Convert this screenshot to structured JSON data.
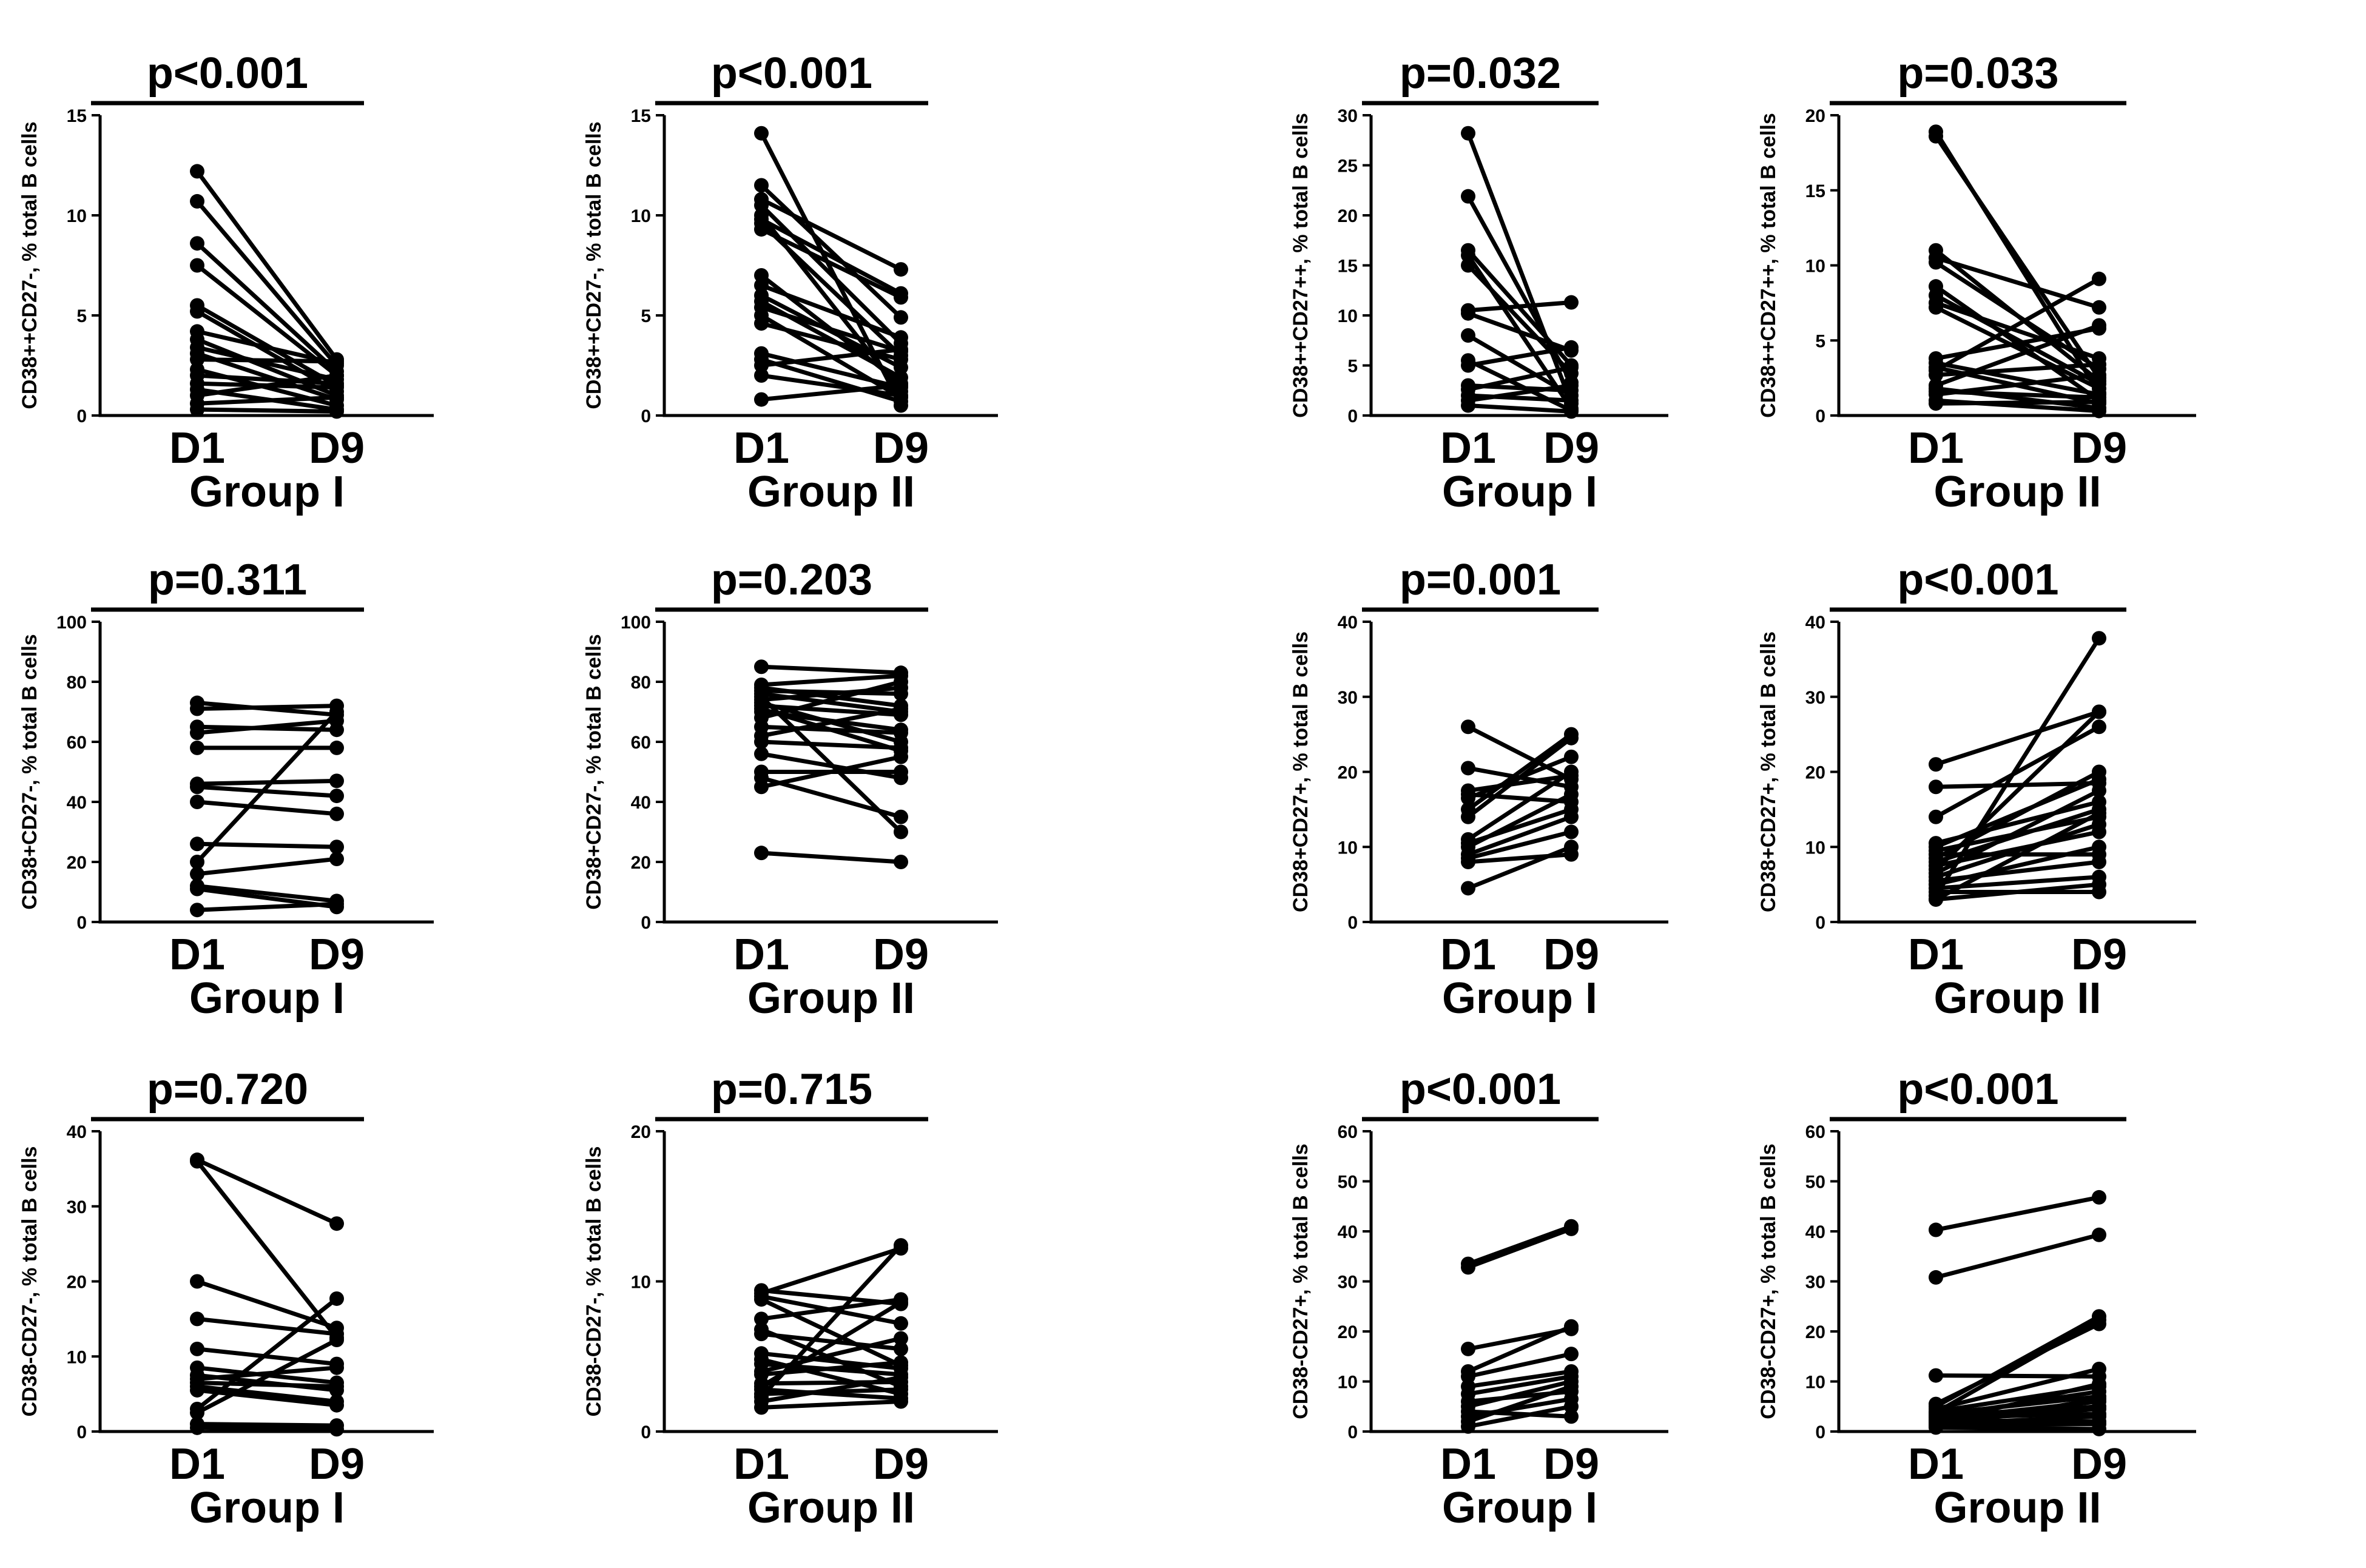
{
  "chart_data": [
    {
      "type": "line",
      "pvalue": "p<0.001",
      "ylabel": "CD38++CD27-, % total B cells",
      "xlabel": "Group I",
      "categories": [
        "D1",
        "D9"
      ],
      "ylim": [
        0,
        15
      ],
      "yticks": [
        0,
        5,
        10,
        15
      ],
      "series": [
        [
          12.2,
          2.8
        ],
        [
          10.7,
          2.5
        ],
        [
          8.6,
          2.2
        ],
        [
          7.5,
          2.0
        ],
        [
          5.5,
          1.5
        ],
        [
          5.2,
          1.2
        ],
        [
          4.2,
          2.6
        ],
        [
          3.8,
          1.0
        ],
        [
          3.4,
          1.8
        ],
        [
          3.1,
          0.8
        ],
        [
          2.8,
          2.7
        ],
        [
          2.3,
          0.5
        ],
        [
          2.0,
          1.6
        ],
        [
          1.6,
          1.4
        ],
        [
          1.3,
          0.3
        ],
        [
          1.0,
          2.0
        ],
        [
          0.6,
          0.9
        ],
        [
          0.3,
          0.2
        ]
      ]
    },
    {
      "type": "line",
      "pvalue": "p<0.001",
      "ylabel": "CD38++CD27-, % total B cells",
      "xlabel": "Group II",
      "categories": [
        "D1",
        "D9"
      ],
      "ylim": [
        0,
        15
      ],
      "yticks": [
        0,
        5,
        10,
        15
      ],
      "series": [
        [
          14.1,
          0.5
        ],
        [
          11.5,
          4.9
        ],
        [
          10.8,
          7.3
        ],
        [
          10.5,
          3.6
        ],
        [
          10.0,
          1.2
        ],
        [
          9.8,
          6.1
        ],
        [
          9.6,
          3.0
        ],
        [
          9.3,
          5.9
        ],
        [
          7.0,
          1.6
        ],
        [
          6.5,
          3.9
        ],
        [
          6.0,
          2.4
        ],
        [
          5.7,
          1.9
        ],
        [
          5.4,
          3.2
        ],
        [
          5.0,
          0.9
        ],
        [
          4.6,
          2.8
        ],
        [
          3.1,
          1.4
        ],
        [
          2.8,
          0.7
        ],
        [
          2.5,
          3.3
        ],
        [
          2.0,
          1.0
        ],
        [
          0.8,
          1.5
        ]
      ]
    },
    {
      "type": "line",
      "pvalue": "p=0.032",
      "ylabel": "CD38++CD27++, % total B cells",
      "xlabel": "Group I",
      "categories": [
        "D1",
        "D9"
      ],
      "ylim": [
        0,
        30
      ],
      "yticks": [
        0,
        5,
        10,
        15,
        20,
        25,
        30
      ],
      "series": [
        [
          28.2,
          1.2
        ],
        [
          21.9,
          3.3
        ],
        [
          16.5,
          5.0
        ],
        [
          16.0,
          0.7
        ],
        [
          15.0,
          4.2
        ],
        [
          10.5,
          11.3
        ],
        [
          10.2,
          6.5
        ],
        [
          8.0,
          2.0
        ],
        [
          5.5,
          0.5
        ],
        [
          5.0,
          6.8
        ],
        [
          3.0,
          2.5
        ],
        [
          2.6,
          4.8
        ],
        [
          2.0,
          1.5
        ],
        [
          1.5,
          3.0
        ],
        [
          1.0,
          0.4
        ]
      ]
    },
    {
      "type": "line",
      "pvalue": "p=0.033",
      "ylabel": "CD38++CD27++, % total B cells",
      "xlabel": "Group II",
      "categories": [
        "D1",
        "D9"
      ],
      "ylim": [
        0,
        20
      ],
      "yticks": [
        0,
        5,
        10,
        15,
        20
      ],
      "series": [
        [
          18.9,
          1.5
        ],
        [
          18.6,
          2.5
        ],
        [
          11.0,
          2.3
        ],
        [
          10.5,
          7.2
        ],
        [
          10.2,
          3.1
        ],
        [
          8.6,
          1.0
        ],
        [
          8.0,
          2.1
        ],
        [
          7.5,
          3.8
        ],
        [
          7.2,
          1.8
        ],
        [
          3.8,
          5.8
        ],
        [
          3.5,
          1.4
        ],
        [
          3.2,
          0.8
        ],
        [
          3.0,
          9.1
        ],
        [
          2.7,
          3.4
        ],
        [
          2.0,
          6.0
        ],
        [
          1.8,
          0.5
        ],
        [
          1.6,
          1.2
        ],
        [
          1.4,
          2.7
        ],
        [
          1.0,
          0.3
        ],
        [
          0.8,
          0.9
        ]
      ]
    },
    {
      "type": "line",
      "pvalue": "p=0.311",
      "ylabel": "CD38+CD27-, % total B cells",
      "xlabel": "Group I",
      "categories": [
        "D1",
        "D9"
      ],
      "ylim": [
        0,
        100
      ],
      "yticks": [
        0,
        20,
        40,
        60,
        80,
        100
      ],
      "series": [
        [
          73,
          69
        ],
        [
          71,
          72
        ],
        [
          65,
          64
        ],
        [
          63,
          67
        ],
        [
          58,
          58
        ],
        [
          46,
          47
        ],
        [
          45,
          42
        ],
        [
          40,
          36
        ],
        [
          26,
          25
        ],
        [
          20,
          70
        ],
        [
          16,
          21
        ],
        [
          12,
          7
        ],
        [
          11,
          5
        ],
        [
          4,
          6
        ]
      ]
    },
    {
      "type": "line",
      "pvalue": "p=0.203",
      "ylabel": "CD38+CD27-, % total B cells",
      "xlabel": "Group II",
      "categories": [
        "D1",
        "D9"
      ],
      "ylim": [
        0,
        100
      ],
      "yticks": [
        0,
        20,
        40,
        60,
        80,
        100
      ],
      "series": [
        [
          85,
          83
        ],
        [
          79,
          82
        ],
        [
          78,
          72
        ],
        [
          77,
          76
        ],
        [
          76,
          70
        ],
        [
          75,
          30
        ],
        [
          74,
          78
        ],
        [
          73,
          60
        ],
        [
          72,
          69
        ],
        [
          71,
          57
        ],
        [
          70,
          64
        ],
        [
          68,
          80
        ],
        [
          65,
          63
        ],
        [
          62,
          71
        ],
        [
          60,
          58
        ],
        [
          56,
          48
        ],
        [
          50,
          50
        ],
        [
          48,
          35
        ],
        [
          45,
          55
        ],
        [
          23,
          20
        ]
      ]
    },
    {
      "type": "line",
      "pvalue": "p=0.001",
      "ylabel": "CD38+CD27+, % total B cells",
      "xlabel": "Group I",
      "categories": [
        "D1",
        "D9"
      ],
      "ylim": [
        0,
        40
      ],
      "yticks": [
        0,
        10,
        20,
        30,
        40
      ],
      "series": [
        [
          26,
          19
        ],
        [
          20.5,
          18
        ],
        [
          17.5,
          19.5
        ],
        [
          17,
          16
        ],
        [
          16.5,
          22
        ],
        [
          15,
          25
        ],
        [
          14,
          24.5
        ],
        [
          11,
          20
        ],
        [
          10.5,
          15
        ],
        [
          10,
          17
        ],
        [
          9,
          14
        ],
        [
          8.5,
          12
        ],
        [
          8,
          9
        ],
        [
          4.5,
          10
        ]
      ]
    },
    {
      "type": "line",
      "pvalue": "p<0.001",
      "ylabel": "CD38+CD27+, % total B cells",
      "xlabel": "Group II",
      "categories": [
        "D1",
        "D9"
      ],
      "ylim": [
        0,
        40
      ],
      "yticks": [
        0,
        10,
        20,
        30,
        40
      ],
      "series": [
        [
          21,
          28
        ],
        [
          18,
          18.5
        ],
        [
          14,
          26
        ],
        [
          10.5,
          16
        ],
        [
          10,
          19
        ],
        [
          9.5,
          14
        ],
        [
          9,
          9
        ],
        [
          8.5,
          20
        ],
        [
          8,
          15
        ],
        [
          7.5,
          12
        ],
        [
          7,
          28
        ],
        [
          6.5,
          17.5
        ],
        [
          6,
          13
        ],
        [
          5.5,
          8
        ],
        [
          5,
          10
        ],
        [
          4.5,
          6
        ],
        [
          4,
          4
        ],
        [
          3.5,
          37.8
        ],
        [
          3,
          5
        ],
        [
          3,
          14.5
        ]
      ]
    },
    {
      "type": "line",
      "pvalue": "p=0.720",
      "ylabel": "CD38-CD27-, % total B cells",
      "xlabel": "Group I",
      "categories": [
        "D1",
        "D9"
      ],
      "ylim": [
        0,
        40
      ],
      "yticks": [
        0,
        10,
        20,
        30,
        40
      ],
      "series": [
        [
          36.2,
          27.7
        ],
        [
          36.0,
          12.5
        ],
        [
          20.0,
          13.8
        ],
        [
          15.0,
          13.0
        ],
        [
          11.0,
          9.0
        ],
        [
          8.5,
          6.5
        ],
        [
          7.5,
          5.5
        ],
        [
          7.0,
          8.5
        ],
        [
          6.5,
          6.0
        ],
        [
          6.0,
          4.0
        ],
        [
          5.5,
          3.5
        ],
        [
          3.0,
          17.7
        ],
        [
          2.5,
          12.2
        ],
        [
          1.0,
          0.8
        ],
        [
          0.5,
          0.3
        ]
      ]
    },
    {
      "type": "line",
      "pvalue": "p=0.715",
      "ylabel": "CD38-CD27-, % total B cells",
      "xlabel": "Group II",
      "categories": [
        "D1",
        "D9"
      ],
      "ylim": [
        0,
        20
      ],
      "yticks": [
        0,
        10,
        20
      ],
      "series": [
        [
          9.4,
          8.5
        ],
        [
          9.2,
          12.2
        ],
        [
          9.0,
          7.2
        ],
        [
          8.8,
          4.4
        ],
        [
          7.5,
          8.8
        ],
        [
          6.8,
          3.0
        ],
        [
          6.5,
          5.5
        ],
        [
          5.2,
          4.2
        ],
        [
          4.8,
          2.5
        ],
        [
          4.5,
          3.8
        ],
        [
          4.0,
          6.2
        ],
        [
          3.8,
          4.6
        ],
        [
          3.2,
          3.3
        ],
        [
          3.0,
          8.6
        ],
        [
          2.8,
          2.2
        ],
        [
          2.5,
          2.8
        ],
        [
          2.3,
          12.4
        ],
        [
          2.0,
          3.6
        ],
        [
          1.6,
          2.0
        ]
      ]
    },
    {
      "type": "line",
      "pvalue": "p<0.001",
      "ylabel": "CD38-CD27+, % total B cells",
      "xlabel": "Group I",
      "categories": [
        "D1",
        "D9"
      ],
      "ylim": [
        0,
        60
      ],
      "yticks": [
        0,
        10,
        20,
        30,
        40,
        50,
        60
      ],
      "series": [
        [
          33.5,
          41.0
        ],
        [
          32.8,
          40.5
        ],
        [
          16.5,
          20.5
        ],
        [
          12.0,
          21.0
        ],
        [
          11.0,
          15.5
        ],
        [
          9.0,
          12.0
        ],
        [
          7.5,
          11.0
        ],
        [
          6.0,
          8.0
        ],
        [
          5.0,
          10.0
        ],
        [
          4.0,
          3.0
        ],
        [
          3.0,
          6.5
        ],
        [
          2.0,
          9.0
        ],
        [
          1.0,
          5.0
        ]
      ]
    },
    {
      "type": "line",
      "pvalue": "p<0.001",
      "ylabel": "CD38-CD27+, % total B cells",
      "xlabel": "Group II",
      "categories": [
        "D1",
        "D9"
      ],
      "ylim": [
        0,
        60
      ],
      "yticks": [
        0,
        10,
        20,
        30,
        40,
        50,
        60
      ],
      "series": [
        [
          40.3,
          46.8
        ],
        [
          30.8,
          39.3
        ],
        [
          11.2,
          11.0
        ],
        [
          5.5,
          21.5
        ],
        [
          5.0,
          23.0
        ],
        [
          4.5,
          12.5
        ],
        [
          4.0,
          9.0
        ],
        [
          3.8,
          22.3
        ],
        [
          3.5,
          7.0
        ],
        [
          3.2,
          5.0
        ],
        [
          3.0,
          8.0
        ],
        [
          2.8,
          3.5
        ],
        [
          2.5,
          6.0
        ],
        [
          2.2,
          2.0
        ],
        [
          2.0,
          4.5
        ],
        [
          1.8,
          9.5
        ],
        [
          1.5,
          3.0
        ],
        [
          1.2,
          1.5
        ],
        [
          1.0,
          6.5
        ],
        [
          0.8,
          0.5
        ]
      ]
    }
  ]
}
